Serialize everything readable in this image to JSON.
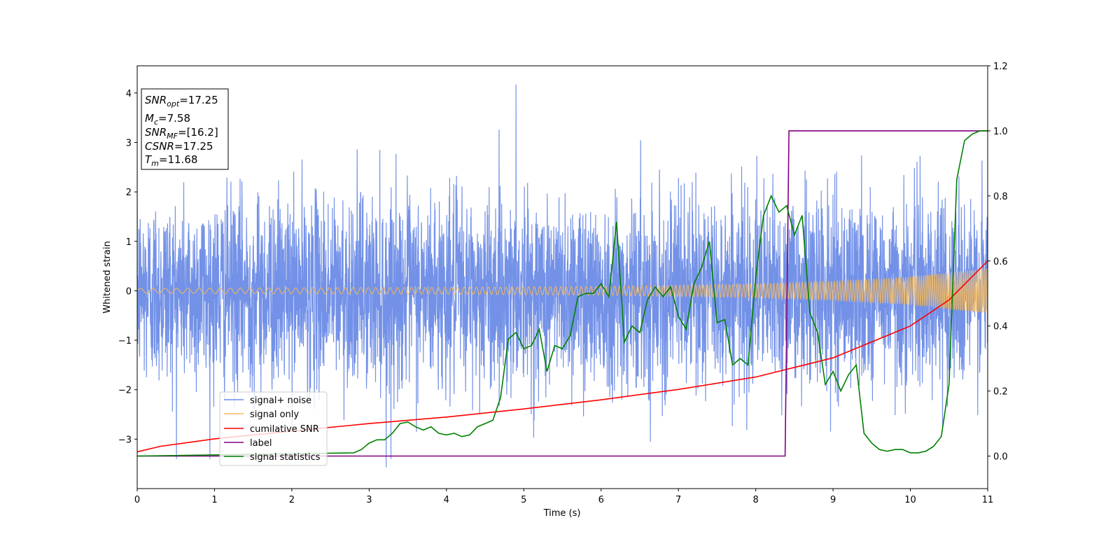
{
  "chart_data": {
    "type": "line",
    "xlabel": "Time (s)",
    "ylabel": "Whitened strain",
    "xlim": [
      0,
      11
    ],
    "ylim": [
      -4.0,
      4.55
    ],
    "y2lim": [
      -0.1,
      1.2
    ],
    "xticks": [
      "0",
      "1",
      "2",
      "3",
      "4",
      "5",
      "6",
      "7",
      "8",
      "9",
      "10",
      "11"
    ],
    "yticks": [
      "−3",
      "−2",
      "−1",
      "0",
      "1",
      "2",
      "3",
      "4"
    ],
    "y2ticks": [
      "0.0",
      "0.2",
      "0.4",
      "0.6",
      "0.8",
      "1.0",
      "1.2"
    ],
    "legend_position": "lower-left",
    "series": [
      {
        "name": "signal+ noise",
        "color": "#6b8be6",
        "axis": "left",
        "description_values": {
          "typical_amplitude": 1.3,
          "max": 4.17,
          "min": -3.57
        }
      },
      {
        "name": "signal only",
        "color": "#f5b85b",
        "axis": "left",
        "x": [
          0,
          2,
          4,
          6,
          8,
          9,
          10,
          11
        ],
        "envelope": [
          0.05,
          0.06,
          0.07,
          0.09,
          0.14,
          0.19,
          0.28,
          0.45
        ]
      },
      {
        "name": "cumilative SNR",
        "color": "#ff0000",
        "axis": "right",
        "x": [
          0,
          0.3,
          1,
          2,
          3,
          4,
          5,
          6,
          7,
          8,
          9,
          10,
          10.5,
          11
        ],
        "y": [
          0.013,
          0.03,
          0.053,
          0.077,
          0.1,
          0.12,
          0.145,
          0.173,
          0.205,
          0.243,
          0.302,
          0.4,
          0.48,
          0.6
        ]
      },
      {
        "name": "label",
        "color": "#800080",
        "axis": "right",
        "x": [
          0,
          8.38,
          8.43,
          11
        ],
        "y": [
          0,
          0,
          1,
          1
        ]
      },
      {
        "name": "signal statistics",
        "color": "#008000",
        "axis": "right",
        "x": [
          0,
          2.8,
          2.9,
          3.0,
          3.1,
          3.2,
          3.3,
          3.4,
          3.5,
          3.6,
          3.7,
          3.8,
          3.9,
          4.0,
          4.1,
          4.2,
          4.3,
          4.4,
          4.5,
          4.6,
          4.7,
          4.8,
          4.9,
          5.0,
          5.1,
          5.2,
          5.3,
          5.4,
          5.5,
          5.6,
          5.7,
          5.8,
          5.9,
          6.0,
          6.1,
          6.2,
          6.3,
          6.4,
          6.5,
          6.6,
          6.7,
          6.8,
          6.9,
          7.0,
          7.1,
          7.2,
          7.3,
          7.4,
          7.5,
          7.6,
          7.7,
          7.8,
          7.9,
          8.0,
          8.1,
          8.2,
          8.3,
          8.4,
          8.5,
          8.6,
          8.7,
          8.8,
          8.9,
          9.0,
          9.1,
          9.2,
          9.3,
          9.4,
          9.5,
          9.6,
          9.7,
          9.8,
          9.9,
          10.0,
          10.1,
          10.2,
          10.3,
          10.4,
          10.5,
          10.6,
          10.7,
          10.8,
          10.9,
          11.0
        ],
        "y": [
          0.0,
          0.01,
          0.02,
          0.04,
          0.05,
          0.05,
          0.07,
          0.1,
          0.105,
          0.09,
          0.08,
          0.09,
          0.07,
          0.065,
          0.07,
          0.06,
          0.065,
          0.09,
          0.1,
          0.11,
          0.18,
          0.36,
          0.38,
          0.33,
          0.34,
          0.39,
          0.26,
          0.34,
          0.33,
          0.37,
          0.49,
          0.5,
          0.5,
          0.53,
          0.49,
          0.72,
          0.35,
          0.4,
          0.38,
          0.48,
          0.52,
          0.49,
          0.52,
          0.43,
          0.39,
          0.53,
          0.58,
          0.66,
          0.41,
          0.42,
          0.28,
          0.3,
          0.28,
          0.55,
          0.74,
          0.8,
          0.75,
          0.77,
          0.68,
          0.74,
          0.44,
          0.38,
          0.22,
          0.26,
          0.2,
          0.25,
          0.28,
          0.07,
          0.04,
          0.02,
          0.015,
          0.02,
          0.02,
          0.01,
          0.01,
          0.015,
          0.03,
          0.06,
          0.22,
          0.85,
          0.97,
          0.99,
          1.0,
          1.0
        ]
      }
    ],
    "annotations": {
      "snr_opt": "17.25",
      "mc": "7.58",
      "snr_mf": "[16.2]",
      "csnr": "17.25",
      "tm": "11.68"
    }
  }
}
